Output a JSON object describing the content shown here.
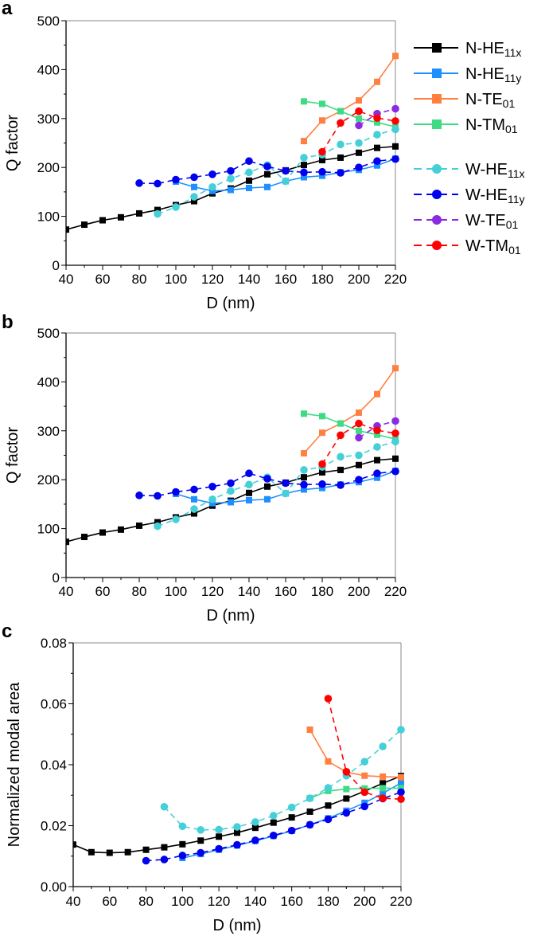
{
  "legend": [
    {
      "key": "N-HE11x",
      "main": "N-HE",
      "sub": "11x",
      "color": "#000000",
      "style": "solid",
      "marker": "square"
    },
    {
      "key": "N-HE11y",
      "main": "N-HE",
      "sub": "11y",
      "color": "#1e8fff",
      "style": "solid",
      "marker": "square"
    },
    {
      "key": "N-TE01",
      "main": "N-TE",
      "sub": "01",
      "color": "#ff8040",
      "style": "solid",
      "marker": "square"
    },
    {
      "key": "N-TM01",
      "main": "N-TM",
      "sub": "01",
      "color": "#3ddc84",
      "style": "solid",
      "marker": "square"
    },
    {
      "key": "W-HE11x",
      "main": "W-HE",
      "sub": "11x",
      "color": "#45d0d8",
      "style": "dashed",
      "marker": "circle"
    },
    {
      "key": "W-HE11y",
      "main": "W-HE",
      "sub": "11y",
      "color": "#0000ee",
      "style": "dashed",
      "marker": "circle"
    },
    {
      "key": "W-TE01",
      "main": "W-TE",
      "sub": "01",
      "color": "#8a2be2",
      "style": "dashed",
      "marker": "circle"
    },
    {
      "key": "W-TM01",
      "main": "W-TM",
      "sub": "01",
      "color": "#ff0000",
      "style": "dashed",
      "marker": "circle"
    }
  ],
  "chart_data": [
    {
      "panel": "a",
      "type": "line",
      "xlabel": "D (nm)",
      "ylabel": "Q factor",
      "xlim": [
        40,
        220
      ],
      "ylim": [
        0,
        500
      ],
      "xticks": [
        40,
        60,
        80,
        100,
        120,
        140,
        160,
        180,
        200,
        220
      ],
      "yticks": [
        0,
        100,
        200,
        300,
        400,
        500
      ],
      "legend_position": "right",
      "series": [
        {
          "name": "N-HE11x",
          "x0": 40,
          "values": [
            73,
            83,
            92,
            98,
            106,
            113,
            123,
            131,
            147,
            157,
            173,
            186,
            194,
            205,
            215,
            220,
            230,
            240,
            243
          ]
        },
        {
          "name": "N-HE11y",
          "x0": 100,
          "values": [
            171,
            160,
            152,
            154,
            158,
            160,
            172,
            180,
            183,
            190,
            195,
            204,
            218
          ]
        },
        {
          "name": "N-TE01",
          "x0": 170,
          "values": [
            254,
            296,
            315,
            337,
            375,
            428
          ]
        },
        {
          "name": "N-TM01",
          "x0": 170,
          "values": [
            335,
            330,
            315,
            300,
            292,
            283
          ]
        },
        {
          "name": "W-HE11x",
          "x0": 90,
          "values": [
            105,
            119,
            140,
            160,
            177,
            190,
            205,
            172,
            220,
            226,
            247,
            250,
            267,
            278
          ]
        },
        {
          "name": "W-HE11y",
          "x0": 80,
          "values": [
            168,
            167,
            175,
            180,
            186,
            193,
            213,
            202,
            193,
            190,
            191,
            189,
            200,
            213,
            217
          ]
        },
        {
          "name": "W-TE01",
          "x0": 200,
          "values": [
            286,
            310,
            320
          ]
        },
        {
          "name": "W-TM01",
          "x0": 180,
          "values": [
            232,
            291,
            315,
            301,
            295
          ]
        }
      ]
    },
    {
      "panel": "b",
      "type": "line",
      "xlabel": "D (nm)",
      "ylabel": "Q factor",
      "xlim": [
        40,
        220
      ],
      "ylim": [
        0,
        500
      ],
      "xticks": [
        40,
        60,
        80,
        100,
        120,
        140,
        160,
        180,
        200,
        220
      ],
      "yticks": [
        0,
        100,
        200,
        300,
        400,
        500
      ],
      "series": [
        {
          "name": "N-HE11x",
          "x0": 40,
          "values": [
            73,
            83,
            92,
            98,
            106,
            113,
            123,
            131,
            147,
            157,
            173,
            186,
            194,
            205,
            215,
            220,
            230,
            240,
            243
          ]
        },
        {
          "name": "N-HE11y",
          "x0": 100,
          "values": [
            171,
            160,
            152,
            154,
            158,
            160,
            172,
            180,
            183,
            190,
            195,
            204,
            218
          ]
        },
        {
          "name": "N-TE01",
          "x0": 170,
          "values": [
            254,
            296,
            315,
            337,
            375,
            428
          ]
        },
        {
          "name": "N-TM01",
          "x0": 170,
          "values": [
            335,
            330,
            315,
            300,
            292,
            283
          ]
        },
        {
          "name": "W-HE11x",
          "x0": 90,
          "values": [
            105,
            119,
            140,
            160,
            177,
            190,
            205,
            172,
            220,
            226,
            247,
            250,
            267,
            278
          ]
        },
        {
          "name": "W-HE11y",
          "x0": 80,
          "values": [
            168,
            167,
            175,
            180,
            186,
            193,
            213,
            202,
            193,
            190,
            191,
            189,
            200,
            213,
            217
          ]
        },
        {
          "name": "W-TE01",
          "x0": 200,
          "values": [
            286,
            310,
            320
          ]
        },
        {
          "name": "W-TM01",
          "x0": 180,
          "values": [
            232,
            291,
            315,
            301,
            295
          ]
        }
      ]
    },
    {
      "panel": "c",
      "type": "line",
      "xlabel": "D (nm)",
      "ylabel": "Normalized modal area",
      "xlim": [
        40,
        220
      ],
      "ylim": [
        0,
        0.08
      ],
      "xticks": [
        40,
        60,
        80,
        100,
        120,
        140,
        160,
        180,
        200,
        220
      ],
      "yticks": [
        "0.00",
        "0.02",
        "0.04",
        "0.06",
        "0.08"
      ],
      "series": [
        {
          "name": "N-HE11x",
          "x0": 40,
          "values": [
            0.0138,
            0.0113,
            0.0111,
            0.0113,
            0.0121,
            0.0129,
            0.0139,
            0.0151,
            0.0164,
            0.0177,
            0.0193,
            0.021,
            0.0227,
            0.0246,
            0.0266,
            0.0289,
            0.0313,
            0.0339,
            0.0363
          ]
        },
        {
          "name": "N-HE11y",
          "x0": 100,
          "values": [
            0.0094,
            0.0107,
            0.0121,
            0.0135,
            0.015,
            0.0166,
            0.0183,
            0.0203,
            0.0224,
            0.0249,
            0.0275,
            0.0306,
            0.034
          ]
        },
        {
          "name": "N-TE01",
          "x0": 170,
          "values": [
            0.0515,
            0.0411,
            0.0376,
            0.0364,
            0.0361,
            0.0359
          ]
        },
        {
          "name": "N-TM01",
          "x0": 170,
          "values": [
            0.029,
            0.0314,
            0.032,
            0.0322,
            0.0323,
            0.0323
          ]
        },
        {
          "name": "W-HE11x",
          "x0": 90,
          "values": [
            0.0262,
            0.0198,
            0.0186,
            0.0187,
            0.0196,
            0.0212,
            0.0233,
            0.026,
            0.029,
            0.0324,
            0.0364,
            0.041,
            0.046,
            0.0515
          ]
        },
        {
          "name": "W-HE11y",
          "x0": 80,
          "values": [
            0.0085,
            0.0089,
            0.0102,
            0.0111,
            0.0124,
            0.0137,
            0.0152,
            0.0168,
            0.0184,
            0.0203,
            0.0221,
            0.0242,
            0.0263,
            0.0289,
            0.031
          ]
        },
        {
          "name": "W-TM01",
          "x0": 180,
          "values": [
            0.0617,
            0.0377,
            0.031,
            0.029,
            0.0287
          ]
        }
      ]
    }
  ]
}
